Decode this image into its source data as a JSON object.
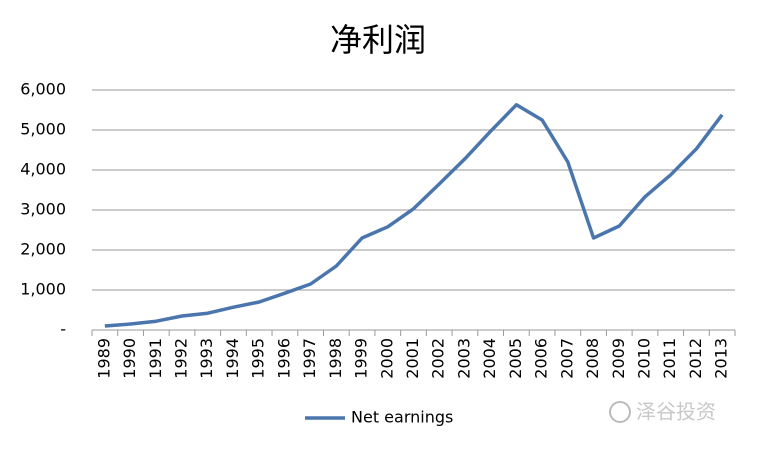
{
  "chart_data": {
    "type": "line",
    "title": "净利润",
    "categories": [
      "1989",
      "1990",
      "1991",
      "1992",
      "1993",
      "1994",
      "1995",
      "1996",
      "1997",
      "1998",
      "1999",
      "2000",
      "2001",
      "2002",
      "2003",
      "2004",
      "2005",
      "2006",
      "2007",
      "2008",
      "2009",
      "2010",
      "2011",
      "2012",
      "2013"
    ],
    "series": [
      {
        "name": "Net earnings",
        "color": "#4a76ad",
        "values": [
          100,
          150,
          220,
          350,
          420,
          570,
          700,
          920,
          1150,
          1600,
          2300,
          2580,
          3030,
          3650,
          4280,
          4970,
          5630,
          5250,
          4200,
          2300,
          2600,
          3330,
          3880,
          4530,
          5380
        ]
      }
    ],
    "ylim": [
      0,
      6000
    ],
    "yticks": [
      {
        "value": 0,
        "label": "-"
      },
      {
        "value": 1000,
        "label": "1,000"
      },
      {
        "value": 2000,
        "label": "2,000"
      },
      {
        "value": 3000,
        "label": "3,000"
      },
      {
        "value": 4000,
        "label": "4,000"
      },
      {
        "value": 5000,
        "label": "5,000"
      },
      {
        "value": 6000,
        "label": "6,000"
      }
    ],
    "grid": true,
    "legend": "bottom",
    "watermark": "泽谷投资"
  }
}
